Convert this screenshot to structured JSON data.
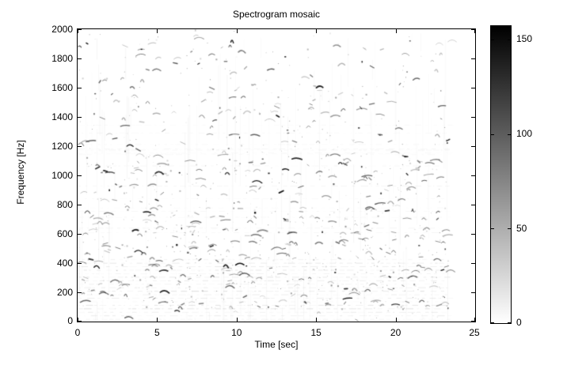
{
  "chart_data": {
    "type": "heatmap",
    "subtype": "spectrogram",
    "title": "Spectrogram mosaic",
    "xlabel": "Time [sec]",
    "ylabel": "Frequency [Hz]",
    "xlim": [
      0,
      25
    ],
    "ylim": [
      0,
      2000
    ],
    "x_ticks": [
      0,
      5,
      10,
      15,
      20,
      25
    ],
    "y_ticks": [
      0,
      200,
      400,
      600,
      800,
      1000,
      1200,
      1400,
      1600,
      1800,
      2000
    ],
    "grid": false,
    "colormap": "inverted-gray (0 = white, max = black)",
    "colors": {
      "axis": "#000000",
      "background": "#ffffff",
      "text": "#000000"
    },
    "colorbar": {
      "position": "right",
      "range": [
        0,
        157
      ],
      "ticks": [
        0,
        50,
        100,
        150
      ]
    },
    "content_description": "Sparse dark chirp-like arcs, slanted strokes and specks on a white background. Densest between ~100 and ~1000 Hz; faint dashed horizontal striping below ~450 Hz; sparser above 1400 Hz. Signal content ends at ~23.3 s, blank white from there to 25 s.",
    "texture": {
      "seed": 1337,
      "t_max": 23.3,
      "chirp_count": 430,
      "dark_chirp_count": 38,
      "speck_count": 650,
      "dark_speck_count": 40,
      "vertical_smear_count": 160,
      "stripe_row_step_hz": 24,
      "stripe_max_hz": 440,
      "extra_stripe_rows": 16,
      "band_weights": [
        {
          "f0": 0,
          "f1": 90,
          "w": 0.25
        },
        {
          "f0": 90,
          "f1": 380,
          "w": 1.0
        },
        {
          "f0": 380,
          "f1": 780,
          "w": 1.3
        },
        {
          "f0": 780,
          "f1": 1150,
          "w": 0.8
        },
        {
          "f0": 1150,
          "f1": 1550,
          "w": 0.5
        },
        {
          "f0": 1550,
          "f1": 2000,
          "w": 0.38
        }
      ]
    }
  }
}
